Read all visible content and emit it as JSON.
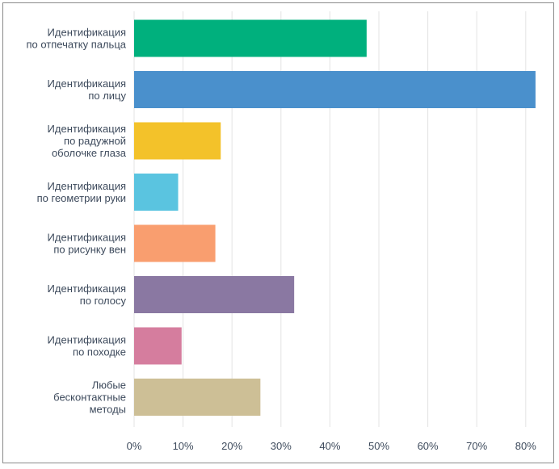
{
  "chart_data": {
    "type": "bar",
    "orientation": "horizontal",
    "title": "",
    "xlabel": "",
    "ylabel": "",
    "categories": [
      [
        "Идентификация",
        "по отпечатку пальца"
      ],
      [
        "Идентификация",
        "по лицу"
      ],
      [
        "Идентификация",
        "по радужной",
        "оболочке глаза"
      ],
      [
        "Идентификация",
        "по геометрии руки"
      ],
      [
        "Идентификация",
        "по рисунку вен"
      ],
      [
        "Идентификация",
        "по голосу"
      ],
      [
        "Идентификация",
        "по походке"
      ],
      [
        "Любые",
        "бесконтактные",
        "методы"
      ]
    ],
    "values": [
      47.5,
      82,
      17.7,
      9,
      16.6,
      32.7,
      9.7,
      25.8
    ],
    "colors": [
      "#00b07d",
      "#4a90cc",
      "#f3c22a",
      "#5ac4e0",
      "#f99e6f",
      "#8a78a2",
      "#d57d9e",
      "#cdbf96"
    ],
    "xlim": [
      0,
      85
    ],
    "xticks": [
      0,
      10,
      20,
      30,
      40,
      50,
      60,
      70,
      80
    ],
    "xtick_labels": [
      "0%",
      "10%",
      "20%",
      "30%",
      "40%",
      "50%",
      "60%",
      "70%",
      "80%"
    ],
    "grid": true
  }
}
